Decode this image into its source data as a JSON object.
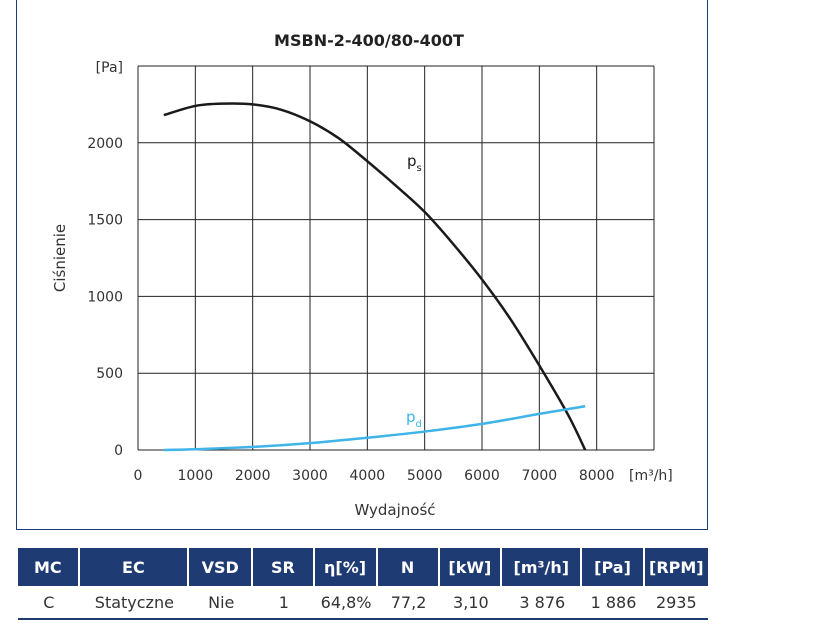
{
  "chart_data": {
    "type": "line",
    "title": "MSBN-2-400/80-400T",
    "xlabel": "Wydajność",
    "ylabel": "Ciśnienie",
    "x_unit": "[m³/h]",
    "y_unit": "[Pa]",
    "xlim": [
      0,
      9000
    ],
    "ylim": [
      0,
      2500
    ],
    "x_ticks": [
      "0",
      "1000",
      "2000",
      "3000",
      "4000",
      "5000",
      "6000",
      "7000",
      "8000"
    ],
    "y_ticks": [
      "0",
      "500",
      "1000",
      "1500",
      "2000"
    ],
    "grid": true,
    "series": [
      {
        "name": "ps",
        "label_main": "p",
        "label_sub": "s",
        "color": "#1a1a1a",
        "x": [
          450,
          1000,
          1500,
          2000,
          2500,
          3000,
          3500,
          4000,
          4500,
          5000,
          5500,
          6000,
          6500,
          7000,
          7500,
          7800
        ],
        "y": [
          2180,
          2240,
          2255,
          2250,
          2215,
          2140,
          2030,
          1880,
          1720,
          1550,
          1340,
          1110,
          850,
          550,
          230,
          0
        ]
      },
      {
        "name": "pd",
        "label_main": "p",
        "label_sub": "d",
        "color": "#3fb4e8",
        "x": [
          450,
          1000,
          2000,
          3000,
          4000,
          5000,
          6000,
          7000,
          7800
        ],
        "y": [
          0,
          5,
          20,
          45,
          80,
          120,
          170,
          235,
          285
        ]
      }
    ]
  },
  "table": {
    "headers": [
      "MC",
      "EC",
      "VSD",
      "SR",
      "η[%]",
      "N",
      "[kW]",
      "[m³/h]",
      "[Pa]",
      "[RPM]"
    ],
    "row": [
      "C",
      "Statyczne",
      "Nie",
      "1",
      "64,8%",
      "77,2",
      "3,10",
      "3 876",
      "1 886",
      "2935"
    ]
  }
}
